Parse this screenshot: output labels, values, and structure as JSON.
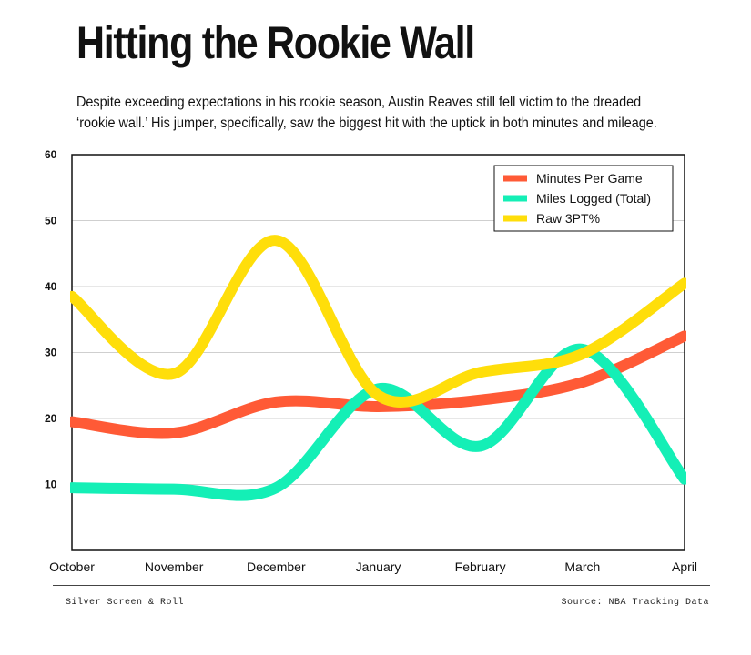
{
  "header": {
    "title": "Hitting the Rookie Wall",
    "subtitle": "Despite exceeding expectations in his rookie season, Austin Reaves still fell victim to the dreaded ‘rookie wall.’ His jumper, specifically, saw the biggest hit with the uptick in both minutes and mileage."
  },
  "footer": {
    "left": "Silver Screen & Roll",
    "right": "Source: NBA Tracking Data"
  },
  "chart_data": {
    "type": "line",
    "title": "Hitting the Rookie Wall",
    "categories": [
      "October",
      "November",
      "December",
      "January",
      "February",
      "March",
      "April"
    ],
    "ylim": [
      0,
      60
    ],
    "yticks": [
      10,
      20,
      30,
      40,
      50,
      60
    ],
    "grid": true,
    "legend_position": "top-right",
    "series": [
      {
        "name": "Minutes Per Game",
        "color": "#ff5a36",
        "values": [
          19.5,
          17.8,
          22.5,
          21.8,
          22.8,
          25.5,
          32.5
        ]
      },
      {
        "name": "Miles Logged (Total)",
        "color": "#14efb6",
        "values": [
          9.5,
          9.3,
          9.5,
          24.5,
          15.8,
          30.5,
          10.8
        ]
      },
      {
        "name": "Raw 3PT%",
        "color": "#ffde0a",
        "values": [
          38.5,
          26.8,
          47.0,
          23.5,
          27.0,
          29.8,
          40.5
        ]
      }
    ]
  }
}
